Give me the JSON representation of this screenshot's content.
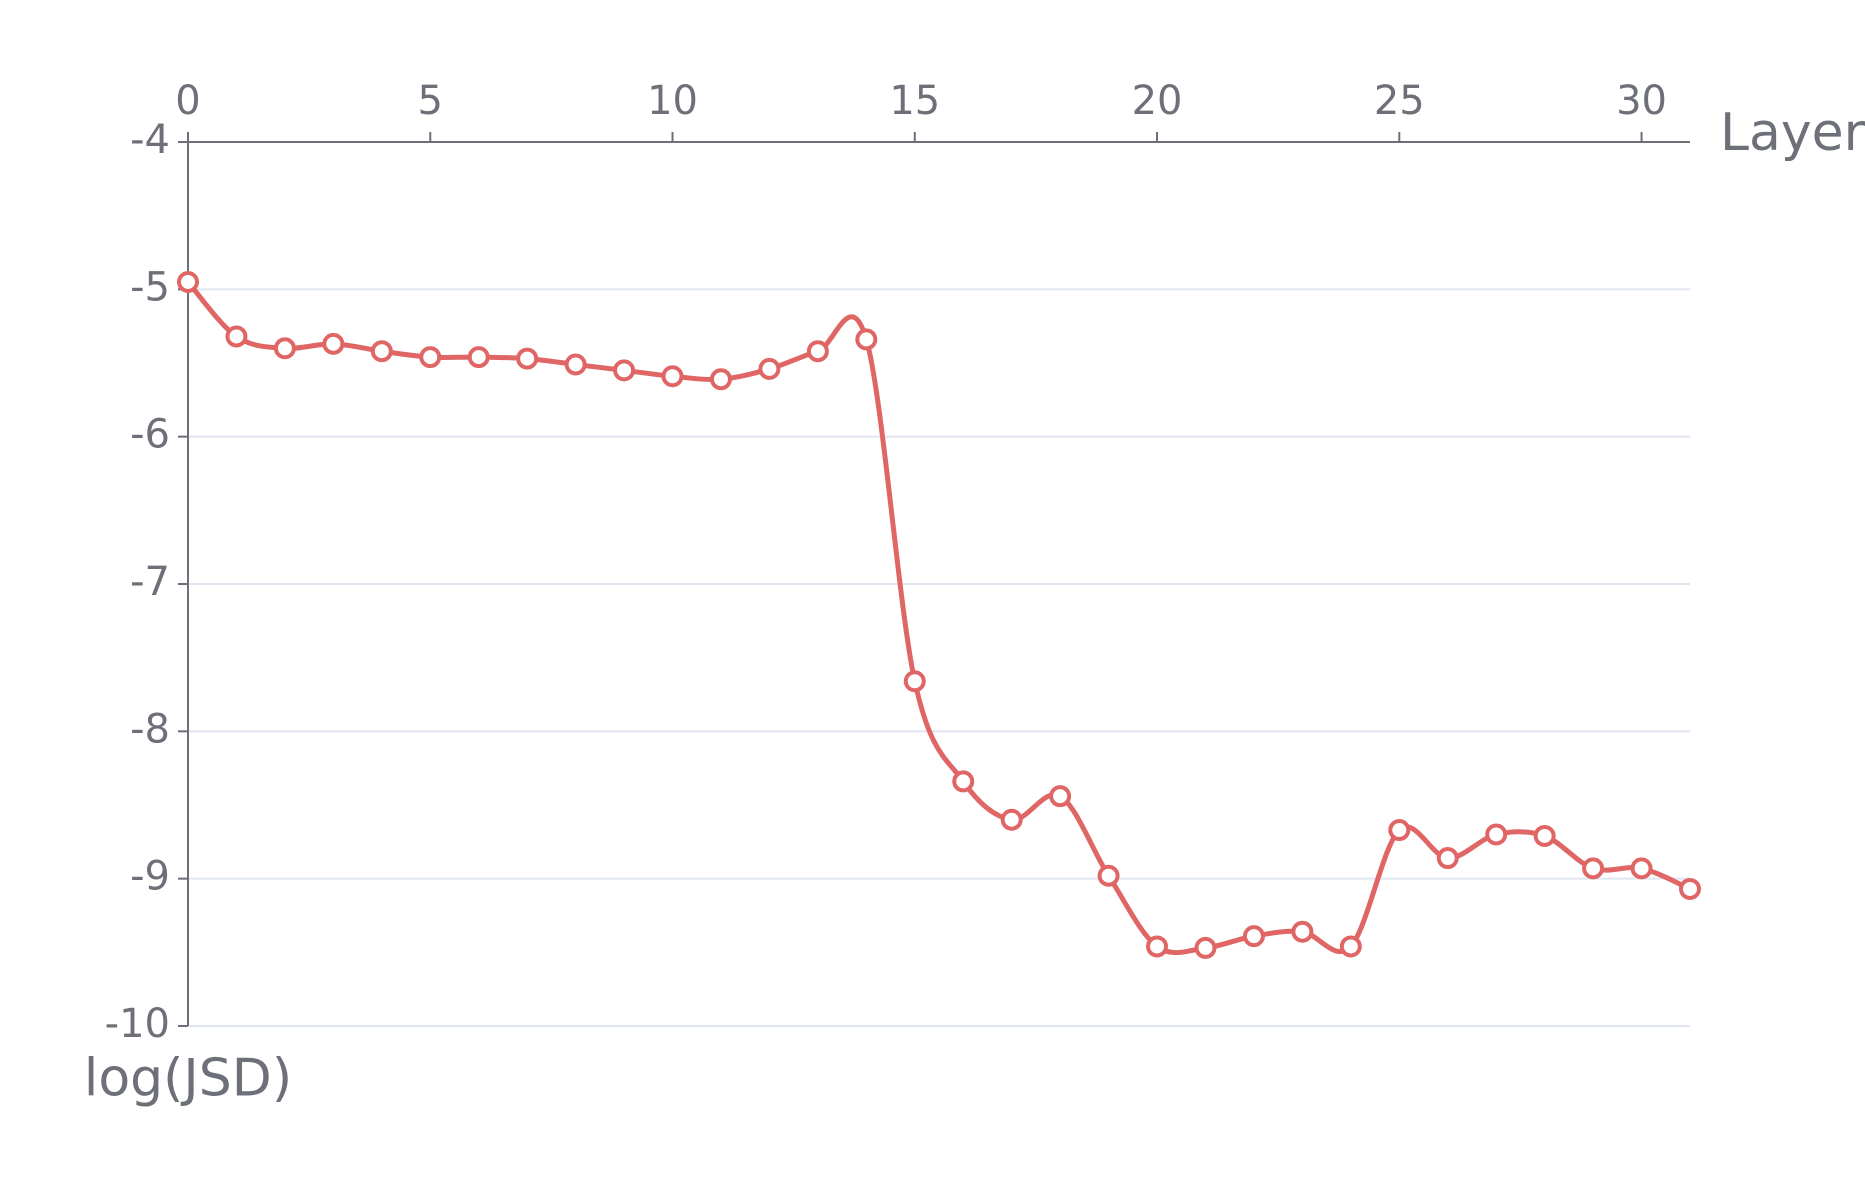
{
  "chart_data": {
    "type": "line",
    "smooth": true,
    "xlabel": "Layer",
    "ylabel": "log(JSD)",
    "xlim": [
      0,
      31
    ],
    "ylim": [
      -10,
      -4
    ],
    "x_axis_position": "top",
    "y_inverse": true,
    "xticks": [
      0,
      5,
      10,
      15,
      20,
      25,
      30
    ],
    "yticks": [
      -4,
      -5,
      -6,
      -7,
      -8,
      -9,
      -10
    ],
    "grid": true,
    "colors": {
      "line": "#e06666",
      "grid": "#e0e6f1",
      "axis": "#6e7079",
      "marker_fill": "#ffffff"
    },
    "series": [
      {
        "x": [
          0,
          1,
          2,
          3,
          4,
          5,
          6,
          7,
          8,
          9,
          10,
          11,
          12,
          13,
          14,
          15,
          16,
          17,
          18,
          19,
          20,
          21,
          22,
          23,
          24,
          25,
          26,
          27,
          28,
          29,
          30,
          31
        ],
        "values": [
          -4.95,
          -5.32,
          -5.4,
          -5.37,
          -5.42,
          -5.46,
          -5.46,
          -5.47,
          -5.51,
          -5.55,
          -5.59,
          -5.61,
          -5.54,
          -5.42,
          -5.34,
          -7.66,
          -8.34,
          -8.6,
          -8.44,
          -8.98,
          -9.46,
          -9.47,
          -9.39,
          -9.36,
          -9.46,
          -8.67,
          -8.86,
          -8.7,
          -8.71,
          -8.93,
          -8.93,
          -9.07
        ]
      }
    ]
  }
}
